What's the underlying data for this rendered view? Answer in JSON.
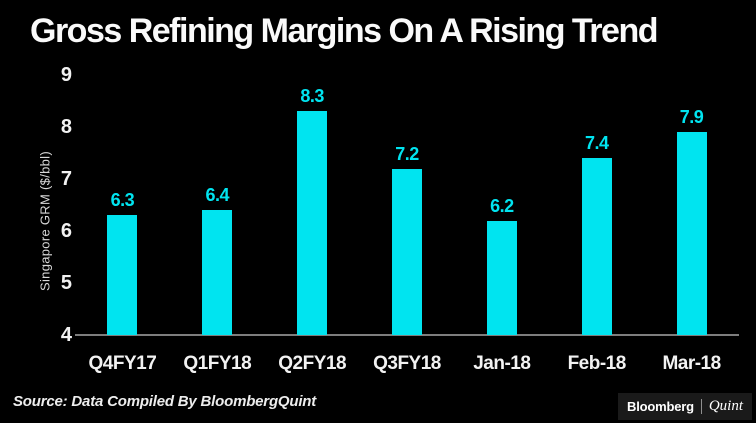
{
  "title": "Gross Refining Margins On A Rising Trend",
  "source": "Source: Data Compiled By BloombergQuint",
  "logo": {
    "bloomberg": "Bloomberg",
    "quint": "Quint",
    "separator": "|"
  },
  "colors": {
    "background": "#000000",
    "bar": "#00E4F0",
    "value_label": "#00E4F0",
    "axis_line": "#7d7d7d",
    "tick_text": "#f2f2f2"
  },
  "chart_data": {
    "type": "bar",
    "title": "Gross Refining Margins On A Rising Trend",
    "xlabel": "",
    "ylabel": "Singapore GRM ($/bbl)",
    "categories": [
      "Q4FY17",
      "Q1FY18",
      "Q2FY18",
      "Q3FY18",
      "Jan-18",
      "Feb-18",
      "Mar-18"
    ],
    "values": [
      6.3,
      6.4,
      8.3,
      7.2,
      6.2,
      7.4,
      7.9
    ],
    "data_labels": [
      "6.3",
      "6.4",
      "8.3",
      "7.2",
      "6.2",
      "7.4",
      "7.9"
    ],
    "ylim": [
      4,
      9
    ],
    "yticks": [
      4,
      5,
      6,
      7,
      8,
      9
    ],
    "grid": false,
    "legend": null,
    "bar_color": "#00E4F0"
  }
}
